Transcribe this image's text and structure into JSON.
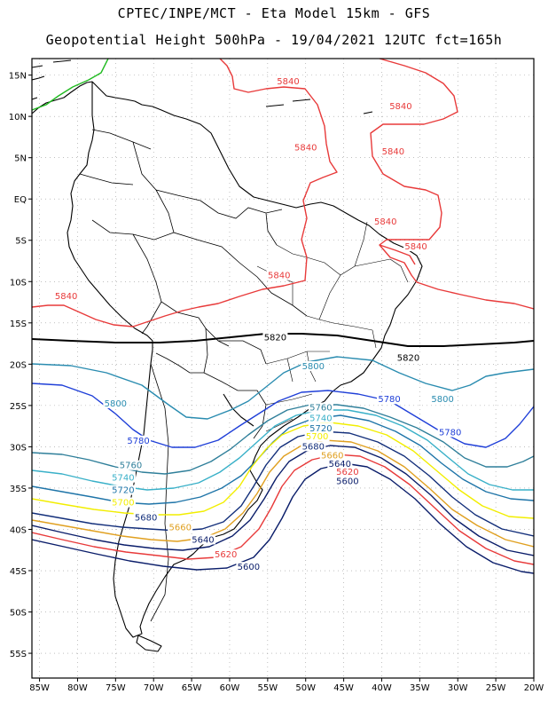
{
  "header": {
    "line1": "CPTEC/INPE/MCT -  Eta Model 15km - GFS",
    "line2": "Geopotential Height 500hPa - 19/04/2021 12UTC fct=165h"
  },
  "map": {
    "lon_range": [
      -86,
      -20
    ],
    "lat_range": [
      -58,
      17
    ],
    "lat_ticks": [
      "15N",
      "10N",
      "5N",
      "EQ",
      "5S",
      "10S",
      "15S",
      "20S",
      "25S",
      "30S",
      "35S",
      "40S",
      "45S",
      "50S",
      "55S"
    ],
    "lon_ticks": [
      "85W",
      "80W",
      "75W",
      "70W",
      "65W",
      "60W",
      "55W",
      "50W",
      "45W",
      "40W",
      "35W",
      "30W",
      "25W",
      "20W"
    ],
    "grid": true
  },
  "contour_colors": {
    "5840": "#e83a3a",
    "5820": "#000000",
    "5800": "#2a8cb0",
    "5780": "#1f3fd8",
    "5760": "#2f7f9a",
    "5740": "#39b0c8",
    "5720": "#1e74a8",
    "5700": "#f2ee00",
    "5680": "#122e7a",
    "5660": "#e0a020",
    "5640": "#0a1d6a",
    "5620": "#e83a3a",
    "5600": "#0a1d6a",
    "boundary": "#000000",
    "other": "#22bb22"
  },
  "contour_labels": [
    {
      "text": "5840",
      "level": "5840"
    },
    {
      "text": "5840",
      "level": "5840"
    },
    {
      "text": "5840",
      "level": "5840"
    },
    {
      "text": "5840",
      "level": "5840"
    },
    {
      "text": "5840",
      "level": "5840"
    },
    {
      "text": "5840",
      "level": "5840"
    },
    {
      "text": "5840",
      "level": "5840"
    },
    {
      "text": "5840",
      "level": "5840"
    },
    {
      "text": "5820",
      "level": "5820"
    },
    {
      "text": "5820",
      "level": "5820"
    },
    {
      "text": "5800",
      "level": "5800"
    },
    {
      "text": "5800",
      "level": "5800"
    },
    {
      "text": "5800",
      "level": "5800"
    },
    {
      "text": "5780",
      "level": "5780"
    },
    {
      "text": "5780",
      "level": "5780"
    },
    {
      "text": "5780",
      "level": "5780"
    },
    {
      "text": "5760",
      "level": "5760"
    },
    {
      "text": "5760",
      "level": "5760"
    },
    {
      "text": "5740",
      "level": "5740"
    },
    {
      "text": "5740",
      "level": "5740"
    },
    {
      "text": "5720",
      "level": "5720"
    },
    {
      "text": "5720",
      "level": "5720"
    },
    {
      "text": "5700",
      "level": "5700"
    },
    {
      "text": "5700",
      "level": "5700"
    },
    {
      "text": "5680",
      "level": "5680"
    },
    {
      "text": "5680",
      "level": "5680"
    },
    {
      "text": "5660",
      "level": "5660"
    },
    {
      "text": "5660",
      "level": "5660"
    },
    {
      "text": "5640",
      "level": "5640"
    },
    {
      "text": "5640",
      "level": "5640"
    },
    {
      "text": "5620",
      "level": "5620"
    },
    {
      "text": "5620",
      "level": "5620"
    },
    {
      "text": "5600",
      "level": "5600"
    },
    {
      "text": "5600",
      "level": "5600"
    }
  ]
}
